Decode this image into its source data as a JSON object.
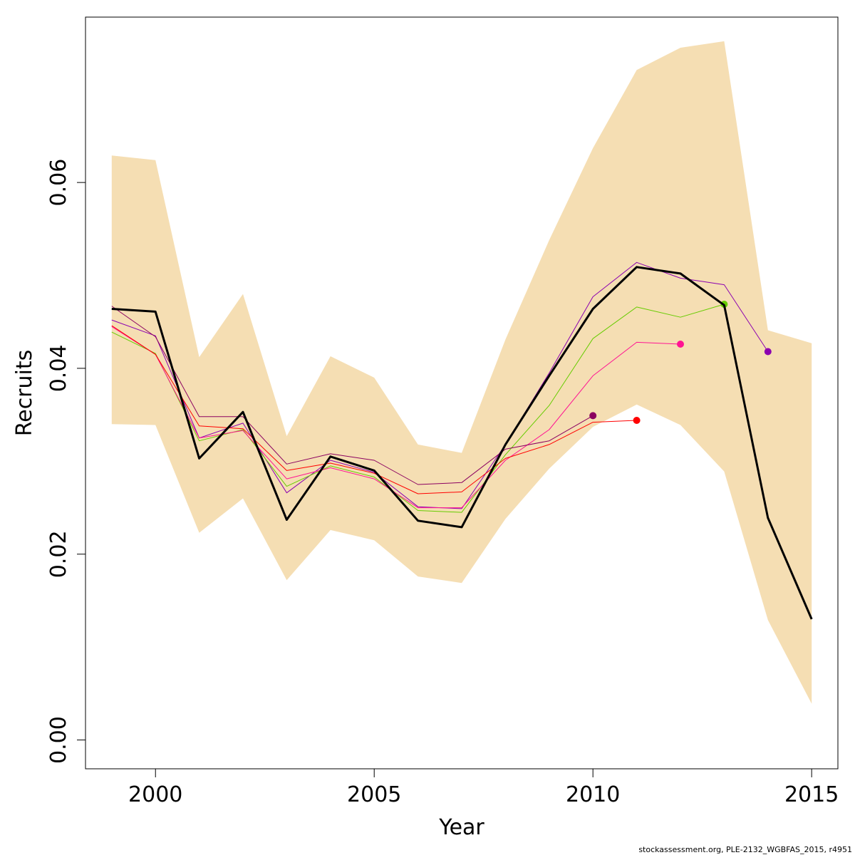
{
  "chart_data": {
    "type": "line",
    "xlabel": "Year",
    "ylabel": "Recruits",
    "xlim": [
      1998.4,
      2015.6
    ],
    "ylim": [
      -0.0031,
      0.0778
    ],
    "x_ticks": [
      2000,
      2005,
      2010,
      2015
    ],
    "y_ticks": [
      0.0,
      0.02,
      0.04,
      0.06
    ],
    "y_tick_labels": [
      "0.00",
      "0.02",
      "0.04",
      "0.06"
    ],
    "grid": false,
    "confidence_band": {
      "color": "#F5DEB3",
      "x": [
        1999,
        2000,
        2001,
        2002,
        2003,
        2004,
        2005,
        2006,
        2007,
        2008,
        2009,
        2010,
        2011,
        2012,
        2013,
        2014,
        2015
      ],
      "lower": [
        0.034,
        0.0339,
        0.0223,
        0.026,
        0.0172,
        0.0226,
        0.0215,
        0.0176,
        0.0169,
        0.0238,
        0.0292,
        0.0337,
        0.0361,
        0.0339,
        0.0289,
        0.0129,
        0.0039
      ],
      "upper": [
        0.0629,
        0.0624,
        0.0412,
        0.048,
        0.0327,
        0.0413,
        0.039,
        0.0318,
        0.0309,
        0.0431,
        0.0538,
        0.0637,
        0.0721,
        0.0745,
        0.0752,
        0.0441,
        0.0427
      ]
    },
    "series": [
      {
        "color": "#000000",
        "width": 3,
        "dot": false,
        "x": [
          1999,
          2000,
          2001,
          2002,
          2003,
          2004,
          2005,
          2006,
          2007,
          2008,
          2009,
          2010,
          2011,
          2012,
          2013,
          2014,
          2015
        ],
        "y": [
          0.0464,
          0.0461,
          0.0303,
          0.0353,
          0.0237,
          0.0305,
          0.029,
          0.0236,
          0.0229,
          0.0318,
          0.0392,
          0.0464,
          0.0509,
          0.0502,
          0.0468,
          0.0239,
          0.013
        ]
      },
      {
        "color": "#8B00B0",
        "width": 1,
        "dot": true,
        "x": [
          1999,
          2000,
          2001,
          2002,
          2003,
          2004,
          2005,
          2006,
          2007,
          2008,
          2009,
          2010,
          2011,
          2012,
          2013,
          2014
        ],
        "y": [
          0.0452,
          0.0435,
          0.0325,
          0.0341,
          0.0266,
          0.0301,
          0.0288,
          0.0251,
          0.0249,
          0.0318,
          0.0395,
          0.0477,
          0.0514,
          0.0497,
          0.049,
          0.0418
        ]
      },
      {
        "color": "#66CC00",
        "width": 1,
        "dot": true,
        "x": [
          1999,
          2000,
          2001,
          2002,
          2003,
          2004,
          2005,
          2006,
          2007,
          2008,
          2009,
          2010,
          2011,
          2012,
          2013
        ],
        "y": [
          0.0439,
          0.0416,
          0.0322,
          0.0334,
          0.0273,
          0.0295,
          0.0283,
          0.0247,
          0.0245,
          0.0307,
          0.036,
          0.0432,
          0.0466,
          0.0455,
          0.0469
        ]
      },
      {
        "color": "#FF1493",
        "width": 1,
        "dot": true,
        "x": [
          1999,
          2000,
          2001,
          2002,
          2003,
          2004,
          2005,
          2006,
          2007,
          2008,
          2009,
          2010,
          2011,
          2012
        ],
        "y": [
          0.0445,
          0.0415,
          0.0325,
          0.0333,
          0.0281,
          0.0293,
          0.0281,
          0.025,
          0.025,
          0.0301,
          0.0334,
          0.0392,
          0.0428,
          0.0426
        ]
      },
      {
        "color": "#FF0000",
        "width": 1,
        "dot": true,
        "x": [
          1999,
          2000,
          2001,
          2002,
          2003,
          2004,
          2005,
          2006,
          2007,
          2008,
          2009,
          2010,
          2011
        ],
        "y": [
          0.0446,
          0.0415,
          0.0338,
          0.0335,
          0.029,
          0.0298,
          0.0287,
          0.0265,
          0.0267,
          0.0303,
          0.0318,
          0.0342,
          0.0344
        ]
      },
      {
        "color": "#8B0060",
        "width": 1,
        "dot": true,
        "x": [
          1999,
          2000,
          2001,
          2002,
          2003,
          2004,
          2005,
          2006,
          2007,
          2008,
          2009,
          2010
        ],
        "y": [
          0.0467,
          0.0434,
          0.0348,
          0.0348,
          0.0297,
          0.0308,
          0.0301,
          0.0275,
          0.0277,
          0.0313,
          0.0322,
          0.0349
        ]
      }
    ]
  },
  "footer": "stockassessment.org, PLE-2132_WGBFAS_2015, r4951"
}
